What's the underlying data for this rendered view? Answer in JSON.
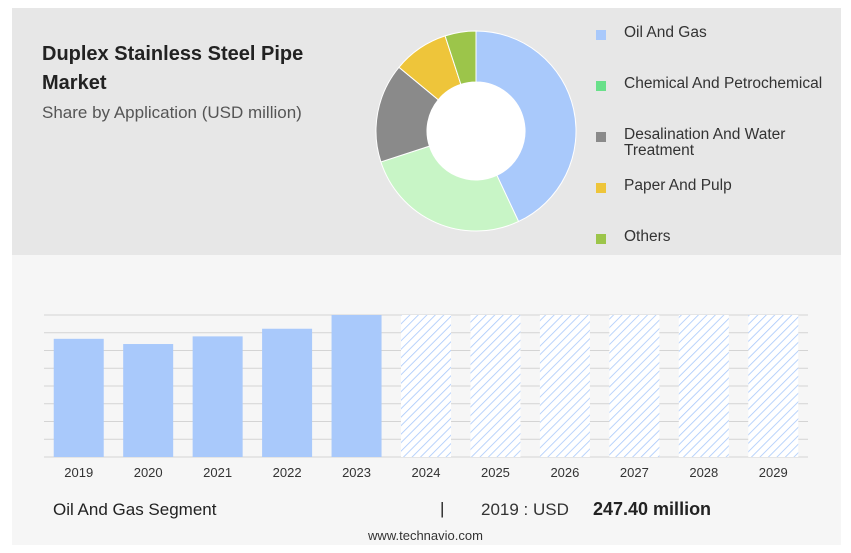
{
  "title": "Duplex Stainless Steel Pipe Market",
  "subtitle": "Share by Application (USD million)",
  "legend": [
    {
      "label": "Oil And Gas",
      "color": "#a9c9fb"
    },
    {
      "label": "Chemical And Petrochemical",
      "color": "#69e08a"
    },
    {
      "label": "Desalination And Water Treatment",
      "color": "#8a8a8a"
    },
    {
      "label": "Paper And Pulp",
      "color": "#eec53a"
    },
    {
      "label": "Others",
      "color": "#9cc54a"
    }
  ],
  "footer": {
    "segment": "Oil And Gas Segment",
    "separator": "|",
    "year_label": "2019 : USD",
    "value": "247.40 million",
    "url": "www.technavio.com"
  },
  "chart_data": [
    {
      "type": "pie",
      "title": "Duplex Stainless Steel Pipe Market",
      "subtitle": "Share by Application (USD million)",
      "donut": true,
      "categories": [
        "Oil And Gas",
        "Chemical And Petrochemical",
        "Desalination And Water Treatment",
        "Paper And Pulp",
        "Others"
      ],
      "values": [
        43,
        27,
        16,
        9,
        5
      ],
      "colors": [
        "#a9c9fb",
        "#c8f5c6",
        "#8a8a8a",
        "#eec53a",
        "#9cc54a"
      ]
    },
    {
      "type": "bar",
      "categories": [
        "2019",
        "2020",
        "2021",
        "2022",
        "2023",
        "2024",
        "2025",
        "2026",
        "2027",
        "2028",
        "2029"
      ],
      "values": [
        247.4,
        244.0,
        249.0,
        254.0,
        263.0,
        263.0,
        263.0,
        263.0,
        263.0,
        263.0,
        263.0
      ],
      "forecast_from": "2024",
      "ylim": [
        170,
        263
      ],
      "grid": true,
      "colors": {
        "actual": "#a9c9fb",
        "forecast_hatch": "#a9c9fb"
      }
    }
  ]
}
